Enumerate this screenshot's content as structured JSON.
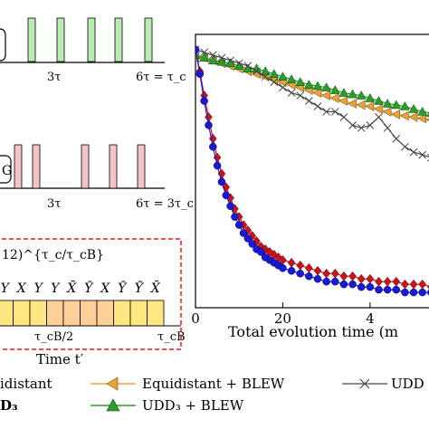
{
  "colors": {
    "green_pulse": "#b9ecb0",
    "red_pulse": "#f4c4c4",
    "yellow_block": "#ffe680",
    "orange_block": "#ffcf99",
    "dashed_box": "#e0161b",
    "red_series": "#c8141e",
    "blue_series": "#1a1ad6",
    "orange_series": "#e8a23c",
    "green_series": "#2a9d2a",
    "grey_series": "#444444"
  },
  "panel_top": {
    "tick_labels": [
      "3τ",
      "6τ = τ_c"
    ]
  },
  "panel_mid": {
    "box_label": "G",
    "tick_labels": [
      "3τ",
      "6τ = 3τ_c"
    ]
  },
  "panel_bottom": {
    "sequence_label": "12)^{τ_c/τ_cB}",
    "pulse_letters": [
      "Y",
      "X",
      "Y",
      "Y",
      "X̄",
      "Ȳ",
      "X",
      "Ȳ",
      "Ȳ",
      "X̄"
    ],
    "mid_label": "τ_cB/2",
    "end_label": "τ_cB",
    "xlabel": "Time t′"
  },
  "legend": {
    "entries": [
      {
        "label": "idistant",
        "marker": "none"
      },
      {
        "label": "Equidistant + BLEW",
        "marker": "triangle-left"
      },
      {
        "label": "UDD",
        "marker": "x"
      },
      {
        "label": "D₃",
        "marker": "none"
      },
      {
        "label": "UDD₃ + BLEW",
        "marker": "triangle-up"
      }
    ]
  },
  "chart_data": {
    "type": "line",
    "xlabel": "Total evolution time (m",
    "x_ticks": [
      "0",
      "20",
      "4"
    ],
    "xlim": [
      0,
      56
    ],
    "ylim": [
      0,
      1
    ],
    "grid": false,
    "series": [
      {
        "name": "Equidistant + BLEW",
        "marker": "triangle-left",
        "color": "orange",
        "x": [
          0,
          2,
          4,
          6,
          8,
          10,
          12,
          14,
          16,
          18,
          20,
          22,
          24,
          26,
          28,
          30,
          32,
          34,
          36,
          38,
          40,
          42,
          44,
          46,
          48,
          50,
          52,
          54,
          56
        ],
        "y": [
          0.92,
          0.92,
          0.91,
          0.9,
          0.89,
          0.88,
          0.87,
          0.86,
          0.85,
          0.84,
          0.83,
          0.82,
          0.81,
          0.8,
          0.79,
          0.78,
          0.77,
          0.76,
          0.75,
          0.745,
          0.74,
          0.73,
          0.72,
          0.71,
          0.705,
          0.7,
          0.695,
          0.69,
          0.685
        ]
      },
      {
        "name": "UDD₃ + BLEW",
        "marker": "triangle-up",
        "color": "green",
        "x": [
          0,
          2,
          4,
          6,
          8,
          10,
          12,
          14,
          16,
          18,
          20,
          22,
          24,
          26,
          28,
          30,
          32,
          34,
          36,
          38,
          40,
          42,
          44,
          46,
          48,
          50,
          52,
          54,
          56
        ],
        "y": [
          0.93,
          0.92,
          0.91,
          0.905,
          0.9,
          0.89,
          0.88,
          0.88,
          0.87,
          0.86,
          0.85,
          0.84,
          0.83,
          0.82,
          0.815,
          0.81,
          0.8,
          0.79,
          0.785,
          0.78,
          0.77,
          0.76,
          0.75,
          0.745,
          0.74,
          0.73,
          0.72,
          0.715,
          0.71
        ]
      },
      {
        "name": "UDD",
        "marker": "x",
        "color": "grey",
        "x": [
          0,
          2,
          4,
          6,
          8,
          10,
          12,
          14,
          16,
          18,
          20,
          22,
          24,
          26,
          28,
          30,
          32,
          34,
          36,
          38,
          40,
          42,
          44,
          46,
          48,
          50,
          52,
          54,
          56
        ],
        "y": [
          0.95,
          0.94,
          0.93,
          0.92,
          0.91,
          0.9,
          0.89,
          0.87,
          0.85,
          0.83,
          0.81,
          0.79,
          0.78,
          0.76,
          0.74,
          0.72,
          0.72,
          0.7,
          0.67,
          0.66,
          0.67,
          0.7,
          0.66,
          0.62,
          0.59,
          0.57,
          0.56,
          0.55,
          0.54
        ]
      },
      {
        "name": "Equidistant",
        "marker": "diamond",
        "color": "red",
        "x": [
          0,
          1,
          2,
          3,
          4,
          5,
          6,
          7,
          8,
          9,
          10,
          11,
          12,
          13,
          14,
          15,
          16,
          17,
          18,
          19,
          20,
          22,
          24,
          26,
          28,
          30,
          32,
          34,
          36,
          38,
          40,
          42,
          44,
          46,
          48,
          50,
          52,
          54,
          56
        ],
        "y": [
          0.95,
          0.87,
          0.78,
          0.7,
          0.62,
          0.55,
          0.49,
          0.44,
          0.4,
          0.36,
          0.33,
          0.3,
          0.28,
          0.26,
          0.24,
          0.22,
          0.21,
          0.2,
          0.19,
          0.18,
          0.17,
          0.16,
          0.15,
          0.14,
          0.13,
          0.12,
          0.12,
          0.11,
          0.11,
          0.1,
          0.1,
          0.09,
          0.09,
          0.09,
          0.08,
          0.08,
          0.08,
          0.07,
          0.07
        ]
      },
      {
        "name": "UDD₃",
        "marker": "circle",
        "color": "blue",
        "x": [
          0,
          1,
          2,
          3,
          4,
          5,
          6,
          7,
          8,
          9,
          10,
          11,
          12,
          13,
          14,
          15,
          16,
          17,
          18,
          19,
          20,
          22,
          24,
          26,
          28,
          30,
          32,
          34,
          36,
          38,
          40,
          42,
          44,
          46,
          48,
          50,
          52,
          54,
          56
        ],
        "y": [
          0.95,
          0.86,
          0.76,
          0.67,
          0.59,
          0.52,
          0.46,
          0.41,
          0.37,
          0.33,
          0.3,
          0.27,
          0.25,
          0.23,
          0.21,
          0.2,
          0.18,
          0.17,
          0.16,
          0.15,
          0.14,
          0.13,
          0.12,
          0.11,
          0.1,
          0.09,
          0.09,
          0.08,
          0.08,
          0.07,
          0.07,
          0.06,
          0.06,
          0.06,
          0.05,
          0.05,
          0.05,
          0.05,
          0.04
        ]
      }
    ]
  }
}
